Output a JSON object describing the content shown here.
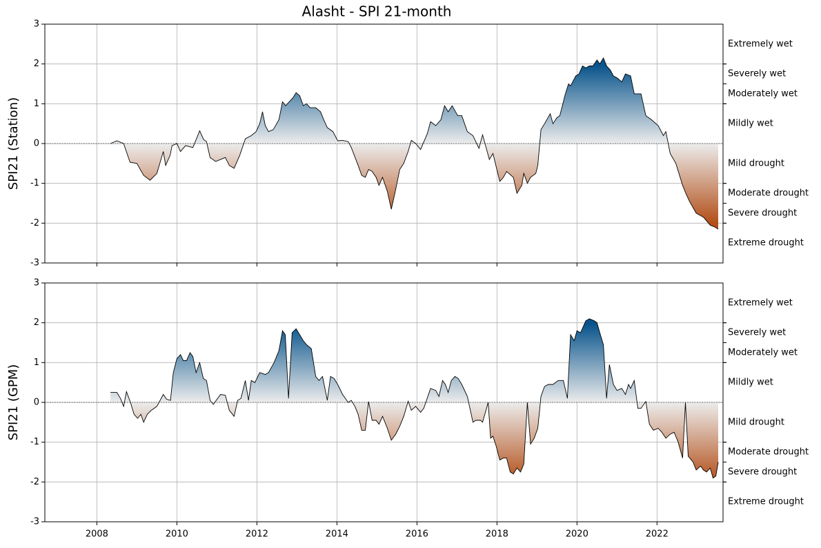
{
  "title": "Alasht - SPI 21-month",
  "chart_data": [
    {
      "type": "area",
      "ylabel": "SPI21 (Station)",
      "show_xtick_labels": false,
      "xlim": [
        2006.7,
        2023.65
      ],
      "ylim": [
        -3,
        3
      ],
      "xticks": [
        2008,
        2010,
        2012,
        2014,
        2016,
        2018,
        2020,
        2022
      ],
      "yticks": [
        -3,
        -2,
        -1,
        0,
        1,
        2,
        3
      ],
      "grid": true,
      "colors": {
        "wet": "#08538b",
        "neutral": "#ececec",
        "dry": "#b3501a",
        "line": "#000000"
      },
      "bands": [
        {
          "label": "Extremely wet",
          "range": [
            2,
            3
          ]
        },
        {
          "label": "Severely wet",
          "range": [
            1.5,
            2
          ]
        },
        {
          "label": "Moderately wet",
          "range": [
            1,
            1.5
          ]
        },
        {
          "label": "Mildly wet",
          "range": [
            0,
            1
          ]
        },
        {
          "label": "Mild drought",
          "range": [
            -1,
            0
          ]
        },
        {
          "label": "Moderate drought",
          "range": [
            -1.5,
            -1
          ]
        },
        {
          "label": "Severe drought",
          "range": [
            -2,
            -1.5
          ]
        },
        {
          "label": "Extreme drought",
          "range": [
            -3,
            -2
          ]
        }
      ],
      "x": [
        2008.34,
        2008.5,
        2008.67,
        2008.83,
        2009.0,
        2009.17,
        2009.33,
        2009.5,
        2009.66,
        2009.72,
        2009.83,
        2009.88,
        2010.0,
        2010.09,
        2010.22,
        2010.4,
        2010.57,
        2010.67,
        2010.74,
        2010.83,
        2010.97,
        2011.09,
        2011.21,
        2011.31,
        2011.43,
        2011.57,
        2011.71,
        2011.86,
        2011.98,
        2012.07,
        2012.14,
        2012.21,
        2012.29,
        2012.41,
        2012.55,
        2012.64,
        2012.72,
        2012.9,
        2012.98,
        2013.07,
        2013.16,
        2013.24,
        2013.33,
        2013.47,
        2013.59,
        2013.67,
        2013.76,
        2013.9,
        2014.02,
        2014.14,
        2014.28,
        2014.36,
        2014.53,
        2014.62,
        2014.71,
        2014.79,
        2014.88,
        2014.98,
        2015.05,
        2015.14,
        2015.26,
        2015.36,
        2015.47,
        2015.57,
        2015.67,
        2015.78,
        2015.86,
        2015.97,
        2016.09,
        2016.26,
        2016.34,
        2016.47,
        2016.6,
        2016.69,
        2016.78,
        2016.88,
        2017.02,
        2017.12,
        2017.26,
        2017.4,
        2017.55,
        2017.64,
        2017.81,
        2017.9,
        2018.07,
        2018.16,
        2018.24,
        2018.41,
        2018.5,
        2018.62,
        2018.67,
        2018.76,
        2018.84,
        2018.97,
        2019.02,
        2019.1,
        2019.19,
        2019.33,
        2019.4,
        2019.5,
        2019.57,
        2019.71,
        2019.79,
        2019.84,
        2019.97,
        2020.05,
        2020.14,
        2020.22,
        2020.31,
        2020.4,
        2020.5,
        2020.57,
        2020.66,
        2020.74,
        2020.83,
        2020.91,
        2021.0,
        2021.12,
        2021.21,
        2021.34,
        2021.43,
        2021.6,
        2021.72,
        2021.86,
        2022.03,
        2022.16,
        2022.22,
        2022.33,
        2022.47,
        2022.64,
        2022.72,
        2022.81,
        2022.98,
        2023.16,
        2023.33,
        2023.45,
        2023.53
      ],
      "values": [
        0,
        0.07,
        0,
        -0.47,
        -0.5,
        -0.8,
        -0.92,
        -0.75,
        -0.2,
        -0.55,
        -0.3,
        -0.05,
        0,
        -0.2,
        -0.05,
        -0.1,
        0.32,
        0.1,
        0.05,
        -0.35,
        -0.45,
        -0.4,
        -0.35,
        -0.55,
        -0.62,
        -0.3,
        0.12,
        0.2,
        0.3,
        0.5,
        0.8,
        0.45,
        0.3,
        0.35,
        0.6,
        1.05,
        0.95,
        1.15,
        1.28,
        1.2,
        0.95,
        1.0,
        0.9,
        0.9,
        0.8,
        0.6,
        0.4,
        0.3,
        0.07,
        0.08,
        0.05,
        -0.1,
        -0.55,
        -0.8,
        -0.85,
        -0.65,
        -0.7,
        -0.85,
        -1.05,
        -0.85,
        -1.2,
        -1.65,
        -1.15,
        -0.65,
        -0.5,
        -0.2,
        0.08,
        0,
        -0.15,
        0.25,
        0.55,
        0.45,
        0.6,
        0.95,
        0.8,
        0.95,
        0.7,
        0.7,
        0.3,
        0.2,
        -0.12,
        0.22,
        -0.4,
        -0.25,
        -0.95,
        -0.85,
        -0.7,
        -0.85,
        -1.25,
        -1.05,
        -0.75,
        -1.0,
        -0.85,
        -0.75,
        -0.55,
        0.35,
        0.5,
        0.75,
        0.5,
        0.65,
        0.7,
        1.25,
        1.5,
        1.45,
        1.7,
        1.75,
        1.95,
        1.9,
        1.95,
        1.95,
        2.1,
        2.0,
        2.15,
        1.95,
        1.85,
        1.7,
        1.65,
        1.55,
        1.75,
        1.7,
        1.25,
        1.25,
        0.7,
        0.6,
        0.45,
        0.2,
        0.3,
        -0.25,
        -0.5,
        -1.05,
        -1.25,
        -1.45,
        -1.75,
        -1.85,
        -2.05,
        -2.1,
        -2.15
      ]
    },
    {
      "type": "area",
      "ylabel": "SPI21 (GPM)",
      "show_xtick_labels": true,
      "xlim": [
        2006.7,
        2023.65
      ],
      "ylim": [
        -3,
        3
      ],
      "xticks": [
        2008,
        2010,
        2012,
        2014,
        2016,
        2018,
        2020,
        2022
      ],
      "yticks": [
        -3,
        -2,
        -1,
        0,
        1,
        2,
        3
      ],
      "grid": true,
      "colors": {
        "wet": "#08538b",
        "neutral": "#ececec",
        "dry": "#b3501a",
        "line": "#000000"
      },
      "bands": [
        {
          "label": "Extremely wet",
          "range": [
            2,
            3
          ]
        },
        {
          "label": "Severely wet",
          "range": [
            1.5,
            2
          ]
        },
        {
          "label": "Moderately wet",
          "range": [
            1,
            1.5
          ]
        },
        {
          "label": "Mildly wet",
          "range": [
            0,
            1
          ]
        },
        {
          "label": "Mild drought",
          "range": [
            -1,
            0
          ]
        },
        {
          "label": "Moderate drought",
          "range": [
            -1.5,
            -1
          ]
        },
        {
          "label": "Severe drought",
          "range": [
            -2,
            -1.5
          ]
        },
        {
          "label": "Extreme drought",
          "range": [
            -3,
            -2
          ]
        }
      ],
      "x": [
        2008.34,
        2008.5,
        2008.59,
        2008.67,
        2008.74,
        2008.84,
        2008.93,
        2009.02,
        2009.1,
        2009.17,
        2009.26,
        2009.36,
        2009.5,
        2009.66,
        2009.74,
        2009.84,
        2009.91,
        2010.0,
        2010.09,
        2010.16,
        2010.24,
        2010.33,
        2010.4,
        2010.48,
        2010.57,
        2010.66,
        2010.74,
        2010.83,
        2010.91,
        2011.09,
        2011.21,
        2011.31,
        2011.43,
        2011.52,
        2011.6,
        2011.71,
        2011.79,
        2011.86,
        2011.95,
        2012.07,
        2012.21,
        2012.29,
        2012.43,
        2012.55,
        2012.64,
        2012.71,
        2012.79,
        2012.88,
        2012.98,
        2013.07,
        2013.16,
        2013.24,
        2013.36,
        2013.47,
        2013.55,
        2013.64,
        2013.76,
        2013.84,
        2013.93,
        2014.02,
        2014.14,
        2014.28,
        2014.36,
        2014.45,
        2014.53,
        2014.62,
        2014.71,
        2014.79,
        2014.88,
        2014.98,
        2015.05,
        2015.14,
        2015.26,
        2015.36,
        2015.47,
        2015.57,
        2015.67,
        2015.78,
        2015.86,
        2015.97,
        2016.09,
        2016.17,
        2016.34,
        2016.47,
        2016.55,
        2016.64,
        2016.71,
        2016.78,
        2016.86,
        2016.95,
        2017.03,
        2017.12,
        2017.26,
        2017.4,
        2017.47,
        2017.59,
        2017.64,
        2017.78,
        2017.84,
        2017.9,
        2017.98,
        2018.07,
        2018.16,
        2018.24,
        2018.33,
        2018.41,
        2018.5,
        2018.59,
        2018.67,
        2018.76,
        2018.84,
        2018.93,
        2019.02,
        2019.1,
        2019.19,
        2019.28,
        2019.4,
        2019.53,
        2019.66,
        2019.76,
        2019.84,
        2019.93,
        2020.0,
        2020.09,
        2020.22,
        2020.31,
        2020.43,
        2020.5,
        2020.57,
        2020.66,
        2020.74,
        2020.81,
        2020.91,
        2021.0,
        2021.12,
        2021.21,
        2021.29,
        2021.34,
        2021.43,
        2021.52,
        2021.6,
        2021.72,
        2021.81,
        2021.91,
        2022.03,
        2022.12,
        2022.22,
        2022.33,
        2022.43,
        2022.53,
        2022.64,
        2022.71,
        2022.78,
        2022.9,
        2022.98,
        2023.09,
        2023.16,
        2023.24,
        2023.33,
        2023.4,
        2023.47,
        2023.53
      ],
      "values": [
        0.25,
        0.25,
        0.1,
        -0.1,
        0.27,
        0,
        -0.3,
        -0.4,
        -0.3,
        -0.5,
        -0.3,
        -0.2,
        -0.1,
        0.2,
        0.08,
        0.05,
        0.75,
        1.1,
        1.2,
        1.05,
        1.05,
        1.25,
        1.15,
        0.75,
        1.0,
        0.6,
        0.55,
        0.05,
        -0.05,
        0.2,
        0.18,
        -0.2,
        -0.35,
        0.05,
        0.1,
        0.55,
        0.05,
        0.55,
        0.5,
        0.75,
        0.7,
        0.75,
        1.0,
        1.3,
        1.8,
        1.7,
        0.1,
        1.75,
        1.85,
        1.7,
        1.55,
        1.45,
        1.35,
        0.65,
        0.55,
        0.65,
        0.05,
        0.65,
        0.6,
        0.45,
        0.2,
        0,
        0.05,
        -0.1,
        -0.3,
        -0.7,
        -0.7,
        0.02,
        -0.45,
        -0.45,
        -0.55,
        -0.35,
        -0.65,
        -0.95,
        -0.8,
        -0.6,
        -0.35,
        0.03,
        -0.2,
        -0.1,
        -0.25,
        -0.15,
        0.35,
        0.3,
        0.15,
        0.55,
        0.45,
        0.25,
        0.55,
        0.65,
        0.6,
        0.45,
        0.15,
        -0.5,
        -0.45,
        -0.45,
        -0.5,
        0,
        -0.9,
        -0.85,
        -1.1,
        -1.45,
        -1.4,
        -1.4,
        -1.75,
        -1.8,
        -1.65,
        -1.75,
        -1.55,
        0,
        -1.05,
        -0.9,
        -0.65,
        0.15,
        0.4,
        0.45,
        0.45,
        0.55,
        0.55,
        0.1,
        1.7,
        1.55,
        1.8,
        1.75,
        2.05,
        2.1,
        2.05,
        2.0,
        1.75,
        1.45,
        0.1,
        0.95,
        0.45,
        0.3,
        0.35,
        0.2,
        0.45,
        0.35,
        0.55,
        -0.15,
        -0.15,
        0.02,
        -0.55,
        -0.7,
        -0.65,
        -0.75,
        -0.9,
        -0.8,
        -0.75,
        -1.0,
        -1.4,
        0,
        -1.35,
        -1.5,
        -1.7,
        -1.6,
        -1.7,
        -1.75,
        -1.65,
        -1.9,
        -1.85,
        -1.5
      ]
    }
  ]
}
